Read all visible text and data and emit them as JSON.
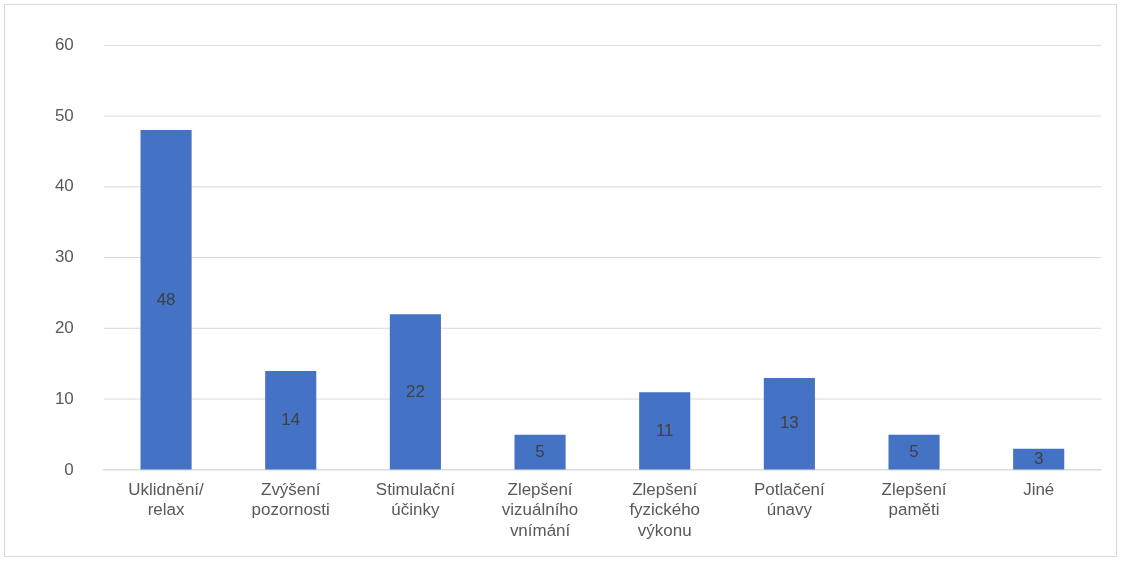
{
  "chart_data": {
    "type": "bar",
    "categories": [
      "Uklidnění/relax",
      "Zvýšení pozornosti",
      "Stimulační účinky",
      "Zlepšení vizuálního vnímání",
      "Zlepšení fyzického výkonu",
      "Potlačení únavy",
      "Zlepšení paměti",
      "Jiné"
    ],
    "values": [
      48,
      14,
      22,
      5,
      11,
      13,
      5,
      3
    ],
    "color": "#4472c4",
    "ylim": [
      0,
      60
    ],
    "yticks": [
      0,
      10,
      20,
      30,
      40,
      50,
      60
    ],
    "grid": "y",
    "legend": false,
    "data_labels": true
  }
}
